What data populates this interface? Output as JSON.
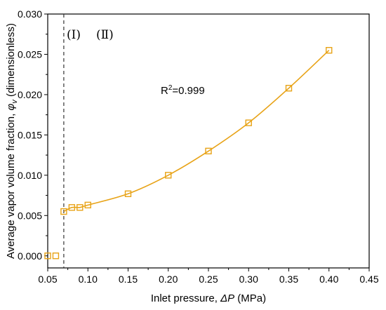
{
  "chart_data": {
    "type": "scatter",
    "xlabel_prefix": "Inlet pressure, ",
    "xlabel_symbol": "ΔP",
    "xlabel_suffix": " (MPa)",
    "ylabel_prefix": "Average vapor volume fraction, ",
    "ylabel_symbol": "φ",
    "ylabel_subscript": "v",
    "ylabel_suffix": " (dimensionless)",
    "xlim": [
      0.05,
      0.45
    ],
    "ylim": [
      -0.0015,
      0.03
    ],
    "xticks": [
      "0.05",
      "0.10",
      "0.15",
      "0.20",
      "0.25",
      "0.30",
      "0.35",
      "0.40",
      "0.45"
    ],
    "yticks": [
      "0.000",
      "0.005",
      "0.010",
      "0.015",
      "0.020",
      "0.025",
      "0.030"
    ],
    "grid": false,
    "color": "#E8A317",
    "marker": "open-square",
    "points": [
      {
        "x": 0.05,
        "y": 0.0
      },
      {
        "x": 0.06,
        "y": 0.0
      },
      {
        "x": 0.07,
        "y": 0.0055
      },
      {
        "x": 0.08,
        "y": 0.006
      },
      {
        "x": 0.09,
        "y": 0.006
      },
      {
        "x": 0.1,
        "y": 0.0063
      },
      {
        "x": 0.15,
        "y": 0.0077
      },
      {
        "x": 0.2,
        "y": 0.01
      },
      {
        "x": 0.25,
        "y": 0.013
      },
      {
        "x": 0.3,
        "y": 0.0165
      },
      {
        "x": 0.35,
        "y": 0.0208
      },
      {
        "x": 0.4,
        "y": 0.0255
      }
    ],
    "fit_range": [
      0.07,
      0.4
    ],
    "divider_x": 0.07,
    "region_left": "(Ⅰ)",
    "region_right": "(Ⅱ)",
    "r2_prefix": "R",
    "r2_sup": "2",
    "r2_value": "=0.999"
  }
}
